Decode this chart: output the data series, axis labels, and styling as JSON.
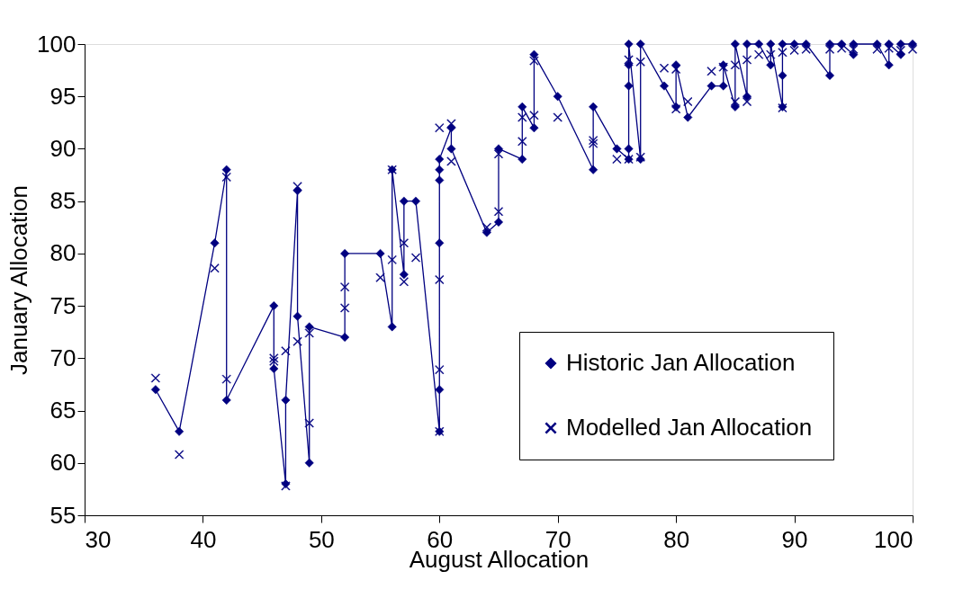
{
  "chart_data": {
    "type": "line",
    "xlabel": "August Allocation",
    "ylabel": "January Allocation",
    "xlim": [
      30,
      100
    ],
    "xticks": [
      30,
      40,
      50,
      60,
      70,
      80,
      90,
      100
    ],
    "ylim": [
      55,
      100
    ],
    "yticks": [
      55,
      60,
      65,
      70,
      75,
      80,
      85,
      90,
      95,
      100
    ],
    "grid": false,
    "legend": "bottom right",
    "series": [
      {
        "name": "Historic Jan Allocation",
        "type": "line",
        "marker": "diamond",
        "color": "#000080",
        "x": [
          36,
          38,
          41,
          42,
          42,
          46,
          46,
          47,
          47,
          48,
          48,
          49,
          49,
          52,
          52,
          55,
          56,
          56,
          57,
          57,
          58,
          60,
          60,
          60,
          60,
          60,
          60,
          61,
          61,
          64,
          65,
          65,
          67,
          67,
          68,
          68,
          70,
          73,
          73,
          75,
          76,
          76,
          76,
          76,
          76,
          77,
          77,
          79,
          80,
          80,
          81,
          83,
          84,
          84,
          85,
          85,
          86,
          86,
          87,
          88,
          88,
          89,
          89,
          89,
          90,
          91,
          93,
          93,
          94,
          95,
          95,
          97,
          98,
          98,
          99,
          99,
          100
        ],
        "values": [
          67,
          63,
          81,
          88,
          66,
          75,
          69,
          58,
          66,
          86,
          74,
          60,
          73,
          72,
          80,
          80,
          73,
          88,
          78,
          85,
          85,
          63,
          67,
          81,
          87,
          88,
          89,
          92,
          90,
          82,
          83,
          90,
          89,
          94,
          92,
          99,
          95,
          88,
          94,
          90,
          89,
          90,
          96,
          98,
          100,
          89,
          100,
          96,
          94,
          98,
          93,
          96,
          96,
          98,
          94,
          100,
          95,
          100,
          100,
          98,
          100,
          94,
          97,
          100,
          100,
          100,
          97,
          100,
          100,
          99,
          100,
          100,
          98,
          100,
          99,
          100,
          100
        ]
      },
      {
        "name": "Modelled Jan Allocation",
        "type": "scatter",
        "marker": "cross",
        "color": "#000080",
        "x": [
          36,
          38,
          41,
          42,
          42,
          46,
          46,
          47,
          47,
          48,
          48,
          49,
          49,
          52,
          52,
          55,
          56,
          56,
          57,
          57,
          58,
          60,
          60,
          60,
          60,
          61,
          61,
          64,
          65,
          65,
          67,
          67,
          68,
          68,
          70,
          73,
          73,
          75,
          76,
          76,
          77,
          77,
          79,
          80,
          80,
          81,
          83,
          84,
          85,
          85,
          86,
          86,
          87,
          88,
          89,
          89,
          90,
          91,
          93,
          94,
          95,
          97,
          98,
          99,
          100
        ],
        "values": [
          68.1,
          60.8,
          78.6,
          87.3,
          68,
          69.7,
          70,
          57.8,
          70.7,
          86.4,
          71.6,
          63.8,
          72.4,
          74.8,
          76.8,
          77.7,
          79.4,
          88,
          77.3,
          81,
          79.6,
          63,
          68.9,
          77.5,
          92,
          88.8,
          92.4,
          82.5,
          84,
          89.5,
          90.7,
          93,
          93.2,
          98.4,
          93,
          90.5,
          90.8,
          89,
          89,
          98.5,
          89.2,
          98.3,
          97.7,
          93.8,
          97.6,
          94.5,
          97.4,
          97.8,
          94.5,
          98,
          94.5,
          98.5,
          99,
          99,
          93.9,
          99.2,
          99.4,
          99.5,
          99.5,
          99.6,
          99.5,
          99.5,
          99.6,
          99.4,
          99.5
        ]
      }
    ]
  }
}
